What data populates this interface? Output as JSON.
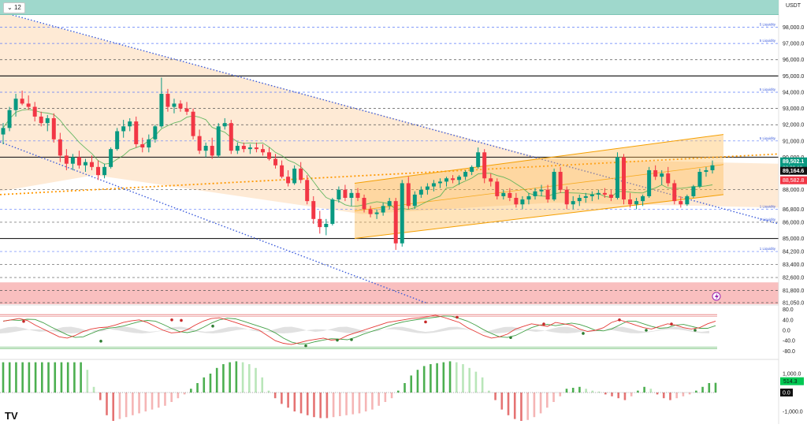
{
  "header": {
    "timeframe": "12",
    "currency": "USDT"
  },
  "colors": {
    "up": "#089981",
    "down": "#f23645",
    "zone": "#fde3c7",
    "band": "#ffb74d",
    "trend": "#3b5bdb",
    "pivot": "#ff9800",
    "redzone": "#f8b4b4",
    "histUpStrong": "#4caf50",
    "histUpWeak": "#b9e6b9",
    "histDownStrong": "#e57373",
    "histDownWeak": "#f5b5b5"
  },
  "price_axis": {
    "ticks": [
      "98,000.0",
      "97,000.0",
      "96,000.0",
      "95,000.0",
      "94,000.0",
      "93,000.0",
      "92,000.0",
      "91,000.0",
      "90,000.0",
      "88,000.0",
      "86,800.0",
      "86,000.0",
      "85,000.0",
      "84,200.0",
      "83,400.0",
      "82,600.0",
      "81,800.0",
      "81,050.0"
    ],
    "current_price": "89,502.1",
    "countdown": "02:09:10",
    "label_green": "89,164.6",
    "label_red": "88,582.8"
  },
  "liquidity_labels": [
    "5 Liquidity",
    "5 Liquidity",
    "5 Liquidity",
    "5 Liquidity",
    "1 Liquidity",
    "1 Liquidity",
    "1 Liquidity"
  ],
  "oscillator": {
    "ticks": [
      "80.0",
      "40.0",
      "0.0",
      "-40.0",
      "-80.0"
    ]
  },
  "histogram": {
    "ticks": [
      "1,000.0",
      "-1,000.0"
    ],
    "value": "514.3",
    "zero_label": "0.0"
  },
  "branding": {
    "logo": "TV"
  },
  "chart_data": {
    "type": "candlestick",
    "ylim": [
      81050,
      98800
    ],
    "candles": [
      [
        91400,
        92100,
        90800,
        91800
      ],
      [
        91800,
        93100,
        91600,
        92900
      ],
      [
        92900,
        93900,
        92500,
        93600
      ],
      [
        93600,
        94100,
        93200,
        93300
      ],
      [
        93300,
        93800,
        92900,
        93100
      ],
      [
        93100,
        93400,
        92200,
        92500
      ],
      [
        92500,
        92800,
        91900,
        92100
      ],
      [
        92100,
        92600,
        91600,
        92400
      ],
      [
        92400,
        92700,
        90900,
        91100
      ],
      [
        91100,
        91500,
        89700,
        90100
      ],
      [
        90100,
        90500,
        89200,
        89600
      ],
      [
        89600,
        90200,
        89200,
        90000
      ],
      [
        90000,
        90400,
        89300,
        89500
      ],
      [
        89500,
        89900,
        89100,
        89700
      ],
      [
        89700,
        90100,
        89200,
        89400
      ],
      [
        89400,
        89800,
        88600,
        88900
      ],
      [
        88900,
        89600,
        88700,
        89400
      ],
      [
        89400,
        90600,
        89300,
        90500
      ],
      [
        90500,
        91800,
        90400,
        91600
      ],
      [
        91600,
        92300,
        91200,
        91900
      ],
      [
        91900,
        92400,
        91600,
        92200
      ],
      [
        92200,
        92500,
        90600,
        90800
      ],
      [
        90800,
        91200,
        90300,
        90600
      ],
      [
        90600,
        91400,
        90300,
        91100
      ],
      [
        91100,
        92000,
        90900,
        91900
      ],
      [
        91900,
        94900,
        91800,
        93900
      ],
      [
        93900,
        94200,
        92800,
        93100
      ],
      [
        93100,
        93600,
        92700,
        93300
      ],
      [
        93300,
        93500,
        92800,
        93000
      ],
      [
        93000,
        93400,
        92600,
        92800
      ],
      [
        92800,
        93000,
        91100,
        91300
      ],
      [
        91300,
        91700,
        90200,
        90400
      ],
      [
        90400,
        90900,
        90000,
        90700
      ],
      [
        90700,
        91200,
        89900,
        90100
      ],
      [
        90100,
        92100,
        90000,
        91900
      ],
      [
        91900,
        92400,
        91700,
        92100
      ],
      [
        92100,
        92300,
        90200,
        90400
      ],
      [
        90400,
        90900,
        90200,
        90700
      ],
      [
        90700,
        90900,
        90300,
        90500
      ],
      [
        90500,
        90800,
        90200,
        90600
      ],
      [
        90600,
        90900,
        90300,
        90500
      ],
      [
        90500,
        90800,
        90100,
        90300
      ],
      [
        90300,
        90600,
        89800,
        89900
      ],
      [
        89900,
        90200,
        89300,
        89500
      ],
      [
        89500,
        89800,
        88700,
        88800
      ],
      [
        88800,
        89200,
        88200,
        88400
      ],
      [
        88400,
        89500,
        88300,
        89300
      ],
      [
        89300,
        89700,
        88400,
        88600
      ],
      [
        88600,
        88900,
        87100,
        87300
      ],
      [
        87300,
        87600,
        85900,
        86200
      ],
      [
        86200,
        86700,
        85300,
        85700
      ],
      [
        85700,
        86200,
        85200,
        85900
      ],
      [
        85900,
        87500,
        85800,
        87400
      ],
      [
        87400,
        88200,
        87200,
        88000
      ],
      [
        88000,
        88300,
        87300,
        87500
      ],
      [
        87500,
        88000,
        87000,
        87800
      ],
      [
        87800,
        88100,
        87300,
        87500
      ],
      [
        87500,
        87700,
        86600,
        86800
      ],
      [
        86800,
        87000,
        86300,
        86500
      ],
      [
        86500,
        86800,
        86200,
        86600
      ],
      [
        86600,
        87200,
        86400,
        87000
      ],
      [
        87000,
        87500,
        86800,
        87300
      ],
      [
        87300,
        87500,
        84300,
        84700
      ],
      [
        84700,
        88600,
        84500,
        88400
      ],
      [
        88400,
        88800,
        86800,
        87000
      ],
      [
        87000,
        87900,
        86800,
        87700
      ],
      [
        87700,
        88200,
        87500,
        88000
      ],
      [
        88000,
        88400,
        87700,
        88200
      ],
      [
        88200,
        88600,
        87900,
        88400
      ],
      [
        88400,
        88700,
        88100,
        88500
      ],
      [
        88500,
        88800,
        88200,
        88700
      ],
      [
        88700,
        88900,
        88400,
        88600
      ],
      [
        88600,
        88900,
        88300,
        88800
      ],
      [
        88800,
        89200,
        88600,
        89100
      ],
      [
        89100,
        89500,
        88900,
        89400
      ],
      [
        89400,
        90600,
        89300,
        90300
      ],
      [
        90300,
        90500,
        88400,
        88700
      ],
      [
        88700,
        89000,
        88200,
        88500
      ],
      [
        88500,
        88700,
        87400,
        87600
      ],
      [
        87600,
        88000,
        87400,
        87800
      ],
      [
        87800,
        88100,
        87300,
        87500
      ],
      [
        87500,
        87800,
        86900,
        87100
      ],
      [
        87100,
        87600,
        86800,
        87400
      ],
      [
        87400,
        87800,
        87100,
        87600
      ],
      [
        87600,
        88100,
        87400,
        87900
      ],
      [
        87900,
        88300,
        87600,
        88000
      ],
      [
        88000,
        88300,
        87200,
        87400
      ],
      [
        87400,
        89300,
        87300,
        89100
      ],
      [
        89100,
        89400,
        87800,
        88000
      ],
      [
        88000,
        88200,
        86800,
        87100
      ],
      [
        87100,
        87600,
        86800,
        87300
      ],
      [
        87300,
        87700,
        87000,
        87500
      ],
      [
        87500,
        87800,
        87200,
        87600
      ],
      [
        87600,
        87900,
        87300,
        87700
      ],
      [
        87700,
        88000,
        87400,
        87800
      ],
      [
        87800,
        88100,
        87500,
        87700
      ],
      [
        87700,
        88000,
        87300,
        87500
      ],
      [
        87500,
        90300,
        87400,
        90000
      ],
      [
        90000,
        90200,
        87100,
        87400
      ],
      [
        87400,
        87800,
        86900,
        87100
      ],
      [
        87100,
        87500,
        86800,
        87300
      ],
      [
        87300,
        87700,
        87000,
        87600
      ],
      [
        87600,
        89400,
        87500,
        89200
      ],
      [
        89200,
        89500,
        88600,
        88800
      ],
      [
        88800,
        89200,
        88300,
        89000
      ],
      [
        89000,
        89400,
        88200,
        88400
      ],
      [
        88400,
        88600,
        87100,
        87300
      ],
      [
        87300,
        87600,
        86900,
        87100
      ],
      [
        87100,
        87700,
        87000,
        87600
      ],
      [
        87600,
        88300,
        87500,
        88200
      ],
      [
        88200,
        89300,
        88100,
        89100
      ],
      [
        89100,
        89400,
        88800,
        89200
      ],
      [
        89200,
        89800,
        89000,
        89502
      ]
    ]
  }
}
